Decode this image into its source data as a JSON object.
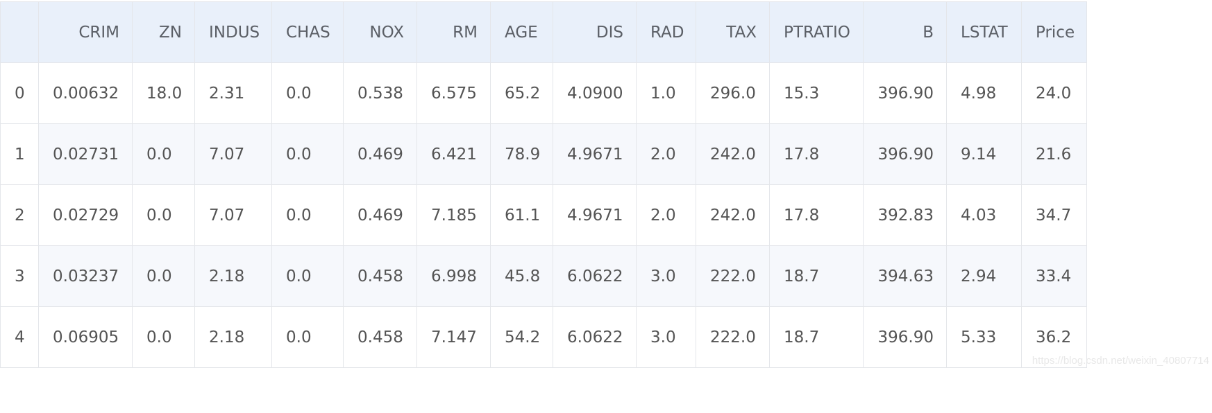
{
  "table": {
    "index_header": "",
    "columns": [
      "CRIM",
      "ZN",
      "INDUS",
      "CHAS",
      "NOX",
      "RM",
      "AGE",
      "DIS",
      "RAD",
      "TAX",
      "PTRATIO",
      "B",
      "LSTAT",
      "Price"
    ],
    "rows": [
      {
        "index": "0",
        "cells": [
          "0.00632",
          "18.0",
          "2.31",
          "0.0",
          "0.538",
          "6.575",
          "65.2",
          "4.0900",
          "1.0",
          "296.0",
          "15.3",
          "396.90",
          "4.98",
          "24.0"
        ]
      },
      {
        "index": "1",
        "cells": [
          "0.02731",
          "0.0",
          "7.07",
          "0.0",
          "0.469",
          "6.421",
          "78.9",
          "4.9671",
          "2.0",
          "242.0",
          "17.8",
          "396.90",
          "9.14",
          "21.6"
        ]
      },
      {
        "index": "2",
        "cells": [
          "0.02729",
          "0.0",
          "7.07",
          "0.0",
          "0.469",
          "7.185",
          "61.1",
          "4.9671",
          "2.0",
          "242.0",
          "17.8",
          "392.83",
          "4.03",
          "34.7"
        ]
      },
      {
        "index": "3",
        "cells": [
          "0.03237",
          "0.0",
          "2.18",
          "0.0",
          "0.458",
          "6.998",
          "45.8",
          "6.0622",
          "3.0",
          "222.0",
          "18.7",
          "394.63",
          "2.94",
          "33.4"
        ]
      },
      {
        "index": "4",
        "cells": [
          "0.06905",
          "0.0",
          "2.18",
          "0.0",
          "0.458",
          "7.147",
          "54.2",
          "6.0622",
          "3.0",
          "222.0",
          "18.7",
          "396.90",
          "5.33",
          "36.2"
        ]
      }
    ]
  },
  "watermark": "https://blog.csdn.net/weixin_40807714",
  "colors": {
    "header_bg": "#e9f0fa",
    "stripe_bg": "#f6f8fc",
    "border": "#e4e6ea",
    "text": "#545454"
  }
}
